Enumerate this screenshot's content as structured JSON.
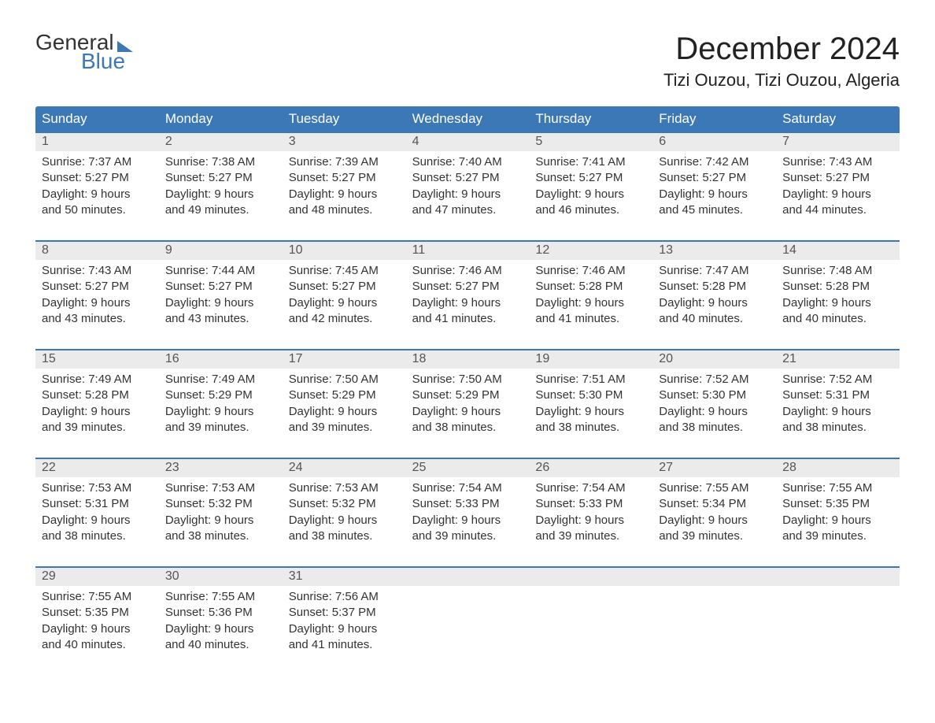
{
  "brand": {
    "line1": "General",
    "line2": "Blue"
  },
  "title": "December 2024",
  "location": "Tizi Ouzou, Tizi Ouzou, Algeria",
  "colors": {
    "header_bg": "#3b78b5",
    "header_text": "#ffffff",
    "daynum_bg": "#ebebeb",
    "daynum_text": "#555555",
    "body_text": "#333333",
    "title_text": "#222222",
    "week_border": "#3b78b5",
    "page_bg": "#ffffff"
  },
  "fonts": {
    "title_size_pt": 30,
    "location_size_pt": 16,
    "dow_size_pt": 13,
    "body_size_pt": 11
  },
  "days_of_week": [
    "Sunday",
    "Monday",
    "Tuesday",
    "Wednesday",
    "Thursday",
    "Friday",
    "Saturday"
  ],
  "labels": {
    "sunrise_prefix": "Sunrise: ",
    "sunset_prefix": "Sunset: ",
    "daylight_prefix": "Daylight: ",
    "hours_word": " hours",
    "and_word": "and ",
    "minutes_word": " minutes."
  },
  "weeks": [
    [
      {
        "n": 1,
        "sunrise": "7:37 AM",
        "sunset": "5:27 PM",
        "dl_h": 9,
        "dl_m": 50
      },
      {
        "n": 2,
        "sunrise": "7:38 AM",
        "sunset": "5:27 PM",
        "dl_h": 9,
        "dl_m": 49
      },
      {
        "n": 3,
        "sunrise": "7:39 AM",
        "sunset": "5:27 PM",
        "dl_h": 9,
        "dl_m": 48
      },
      {
        "n": 4,
        "sunrise": "7:40 AM",
        "sunset": "5:27 PM",
        "dl_h": 9,
        "dl_m": 47
      },
      {
        "n": 5,
        "sunrise": "7:41 AM",
        "sunset": "5:27 PM",
        "dl_h": 9,
        "dl_m": 46
      },
      {
        "n": 6,
        "sunrise": "7:42 AM",
        "sunset": "5:27 PM",
        "dl_h": 9,
        "dl_m": 45
      },
      {
        "n": 7,
        "sunrise": "7:43 AM",
        "sunset": "5:27 PM",
        "dl_h": 9,
        "dl_m": 44
      }
    ],
    [
      {
        "n": 8,
        "sunrise": "7:43 AM",
        "sunset": "5:27 PM",
        "dl_h": 9,
        "dl_m": 43
      },
      {
        "n": 9,
        "sunrise": "7:44 AM",
        "sunset": "5:27 PM",
        "dl_h": 9,
        "dl_m": 43
      },
      {
        "n": 10,
        "sunrise": "7:45 AM",
        "sunset": "5:27 PM",
        "dl_h": 9,
        "dl_m": 42
      },
      {
        "n": 11,
        "sunrise": "7:46 AM",
        "sunset": "5:27 PM",
        "dl_h": 9,
        "dl_m": 41
      },
      {
        "n": 12,
        "sunrise": "7:46 AM",
        "sunset": "5:28 PM",
        "dl_h": 9,
        "dl_m": 41
      },
      {
        "n": 13,
        "sunrise": "7:47 AM",
        "sunset": "5:28 PM",
        "dl_h": 9,
        "dl_m": 40
      },
      {
        "n": 14,
        "sunrise": "7:48 AM",
        "sunset": "5:28 PM",
        "dl_h": 9,
        "dl_m": 40
      }
    ],
    [
      {
        "n": 15,
        "sunrise": "7:49 AM",
        "sunset": "5:28 PM",
        "dl_h": 9,
        "dl_m": 39
      },
      {
        "n": 16,
        "sunrise": "7:49 AM",
        "sunset": "5:29 PM",
        "dl_h": 9,
        "dl_m": 39
      },
      {
        "n": 17,
        "sunrise": "7:50 AM",
        "sunset": "5:29 PM",
        "dl_h": 9,
        "dl_m": 39
      },
      {
        "n": 18,
        "sunrise": "7:50 AM",
        "sunset": "5:29 PM",
        "dl_h": 9,
        "dl_m": 38
      },
      {
        "n": 19,
        "sunrise": "7:51 AM",
        "sunset": "5:30 PM",
        "dl_h": 9,
        "dl_m": 38
      },
      {
        "n": 20,
        "sunrise": "7:52 AM",
        "sunset": "5:30 PM",
        "dl_h": 9,
        "dl_m": 38
      },
      {
        "n": 21,
        "sunrise": "7:52 AM",
        "sunset": "5:31 PM",
        "dl_h": 9,
        "dl_m": 38
      }
    ],
    [
      {
        "n": 22,
        "sunrise": "7:53 AM",
        "sunset": "5:31 PM",
        "dl_h": 9,
        "dl_m": 38
      },
      {
        "n": 23,
        "sunrise": "7:53 AM",
        "sunset": "5:32 PM",
        "dl_h": 9,
        "dl_m": 38
      },
      {
        "n": 24,
        "sunrise": "7:53 AM",
        "sunset": "5:32 PM",
        "dl_h": 9,
        "dl_m": 38
      },
      {
        "n": 25,
        "sunrise": "7:54 AM",
        "sunset": "5:33 PM",
        "dl_h": 9,
        "dl_m": 39
      },
      {
        "n": 26,
        "sunrise": "7:54 AM",
        "sunset": "5:33 PM",
        "dl_h": 9,
        "dl_m": 39
      },
      {
        "n": 27,
        "sunrise": "7:55 AM",
        "sunset": "5:34 PM",
        "dl_h": 9,
        "dl_m": 39
      },
      {
        "n": 28,
        "sunrise": "7:55 AM",
        "sunset": "5:35 PM",
        "dl_h": 9,
        "dl_m": 39
      }
    ],
    [
      {
        "n": 29,
        "sunrise": "7:55 AM",
        "sunset": "5:35 PM",
        "dl_h": 9,
        "dl_m": 40
      },
      {
        "n": 30,
        "sunrise": "7:55 AM",
        "sunset": "5:36 PM",
        "dl_h": 9,
        "dl_m": 40
      },
      {
        "n": 31,
        "sunrise": "7:56 AM",
        "sunset": "5:37 PM",
        "dl_h": 9,
        "dl_m": 41
      },
      null,
      null,
      null,
      null
    ]
  ]
}
